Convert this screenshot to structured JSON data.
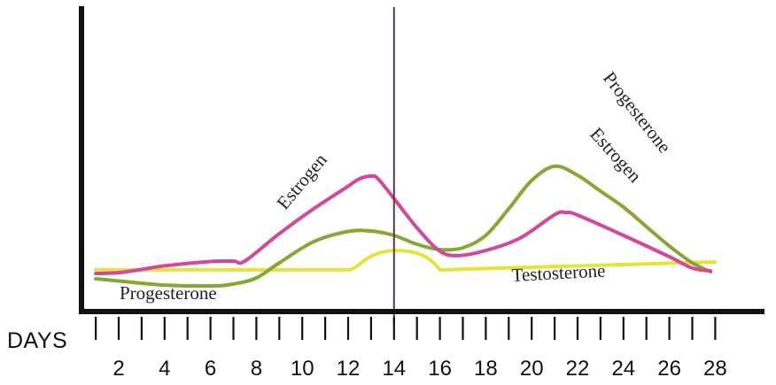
{
  "chart_data": {
    "type": "line",
    "xlabel": "DAYS",
    "ylabel": "",
    "title": "",
    "xlim": [
      1,
      28.3
    ],
    "ylim": [
      0,
      100
    ],
    "grid": false,
    "x_ticks_labeled": [
      2,
      4,
      6,
      8,
      10,
      12,
      14,
      16,
      18,
      20,
      22,
      24,
      26,
      28
    ],
    "x_ticks_minor": [
      1,
      3,
      5,
      7,
      9,
      11,
      13,
      15,
      17,
      19,
      21,
      23,
      25,
      27
    ],
    "marker_line_day": 14,
    "colors": {
      "estrogen": "#d4479a",
      "progesterone": "#86a832",
      "testosterone": "#e3e33a",
      "axis": "#111111",
      "marker": "#6b3340"
    },
    "series": [
      {
        "name": "Estrogen",
        "labels": [
          "Estrogen",
          "Estrogen"
        ],
        "color": "#d4479a",
        "points": [
          [
            1.0,
            12.7
          ],
          [
            2.0,
            13.3
          ],
          [
            3.0,
            15.5
          ],
          [
            4.0,
            18.0
          ],
          [
            6.0,
            20.9
          ],
          [
            7.0,
            21.2
          ],
          [
            7.5,
            21.2
          ],
          [
            9.0,
            40.0
          ],
          [
            10.5,
            57.0
          ],
          [
            12.0,
            72.5
          ],
          [
            12.5,
            77.6
          ],
          [
            13.0,
            79.4
          ],
          [
            13.3,
            77.6
          ],
          [
            14.0,
            64.0
          ],
          [
            15.0,
            44.0
          ],
          [
            16.0,
            28.0
          ],
          [
            16.8,
            25.0
          ],
          [
            18.0,
            28.5
          ],
          [
            19.5,
            37.0
          ],
          [
            21.0,
            53.0
          ],
          [
            21.5,
            54.5
          ],
          [
            22.0,
            52.7
          ],
          [
            24.0,
            38.8
          ],
          [
            26.0,
            24.2
          ],
          [
            27.0,
            16.4
          ],
          [
            27.8,
            14.5
          ]
        ]
      },
      {
        "name": "Progesterone",
        "labels": [
          "Progesterone",
          "Progesterone"
        ],
        "color": "#86a832",
        "points": [
          [
            1.0,
            9.1
          ],
          [
            2.0,
            7.6
          ],
          [
            4.0,
            4.8
          ],
          [
            6.0,
            4.2
          ],
          [
            7.0,
            5.5
          ],
          [
            8.0,
            9.7
          ],
          [
            9.0,
            20.0
          ],
          [
            10.5,
            34.5
          ],
          [
            12.0,
            41.5
          ],
          [
            13.0,
            41.8
          ],
          [
            14.0,
            38.8
          ],
          [
            15.0,
            32.7
          ],
          [
            16.0,
            29.1
          ],
          [
            17.0,
            30.3
          ],
          [
            18.0,
            38.8
          ],
          [
            19.0,
            57.0
          ],
          [
            20.0,
            76.4
          ],
          [
            21.0,
            86.1
          ],
          [
            22.0,
            80.0
          ],
          [
            23.0,
            69.1
          ],
          [
            24.0,
            58.2
          ],
          [
            25.0,
            44.8
          ],
          [
            26.0,
            31.5
          ],
          [
            27.0,
            20.0
          ],
          [
            27.8,
            13.9
          ]
        ]
      },
      {
        "name": "Testosterone",
        "labels": [
          "Testosterone"
        ],
        "color": "#e3e33a",
        "points": [
          [
            1.0,
            15.2
          ],
          [
            12.0,
            15.2
          ],
          [
            13.0,
            24.2
          ],
          [
            14.0,
            28.5
          ],
          [
            15.0,
            25.5
          ],
          [
            16.0,
            15.2
          ],
          [
            28.0,
            20.6
          ]
        ]
      }
    ]
  }
}
